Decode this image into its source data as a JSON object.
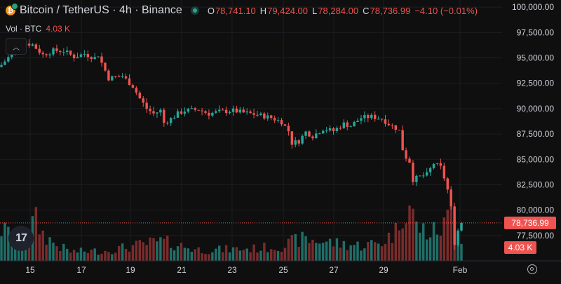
{
  "header": {
    "title": "Bitcoin / TetherUS · 4h · Binance",
    "ohlc": {
      "o_label": "O",
      "o_value": "78,741.10",
      "h_label": "H",
      "h_value": "79,424.00",
      "l_label": "L",
      "l_value": "78,284.00",
      "c_label": "C",
      "c_value": "78,736.99",
      "change": "−4.10 (−0.01%)"
    }
  },
  "volume_legend": {
    "label": "Vol · BTC",
    "value": "4.03 K"
  },
  "price_badge": "78,736.99",
  "volume_badge": "4.03 K",
  "logo_text": "17",
  "colors": {
    "background": "#0f0f0f",
    "up": "#26a69a",
    "down": "#ef5350",
    "up_volume": "#1f6f68",
    "down_volume": "#7a2c2c",
    "grid": "#1b1d22",
    "text": "#d1d4dc"
  },
  "icons": [
    "bitcoin-icon",
    "status-dot-icon",
    "collapse-chevron-icon",
    "tradingview-logo",
    "settings-icon"
  ],
  "chart_data": {
    "type": "candlestick",
    "interval": "4h",
    "y_ticks": [
      "100,000.00",
      "97,500.00",
      "95,000.00",
      "92,500.00",
      "90,000.00",
      "87,500.00",
      "85,000.00",
      "82,500.00",
      "80,000.00",
      "77,500.00"
    ],
    "y_tick_values": [
      100000,
      97500,
      95000,
      92500,
      90000,
      87500,
      85000,
      82500,
      80000,
      77500
    ],
    "x_ticks": [
      "15",
      "17",
      "19",
      "21",
      "23",
      "25",
      "27",
      "29",
      "Feb"
    ],
    "ylim": [
      75000,
      100700
    ],
    "last_price": 78736.99,
    "grid": true,
    "close_path": [
      [
        0,
        94300
      ],
      [
        3,
        95400
      ],
      [
        6,
        96500
      ],
      [
        9,
        96300
      ],
      [
        12,
        95300
      ],
      [
        15,
        95700
      ],
      [
        18,
        95700
      ],
      [
        21,
        95100
      ],
      [
        24,
        95400
      ],
      [
        27,
        95000
      ],
      [
        28,
        95300
      ],
      [
        29,
        94500
      ],
      [
        31,
        93000
      ],
      [
        35,
        93200
      ],
      [
        38,
        92200
      ],
      [
        40,
        91000
      ],
      [
        42,
        90000
      ],
      [
        44,
        89500
      ],
      [
        46,
        89800
      ],
      [
        47,
        88600
      ],
      [
        49,
        89000
      ],
      [
        51,
        89500
      ],
      [
        53,
        89800
      ],
      [
        57,
        89900
      ],
      [
        60,
        89500
      ],
      [
        63,
        89700
      ],
      [
        67,
        89800
      ],
      [
        70,
        89600
      ],
      [
        74,
        89400
      ],
      [
        78,
        89100
      ],
      [
        81,
        88700
      ],
      [
        83,
        87800
      ],
      [
        84,
        86600
      ],
      [
        86,
        86800
      ],
      [
        88,
        87700
      ],
      [
        90,
        87300
      ],
      [
        93,
        88000
      ],
      [
        96,
        87800
      ],
      [
        99,
        88500
      ],
      [
        101,
        88300
      ],
      [
        104,
        89100
      ],
      [
        107,
        89200
      ],
      [
        110,
        89000
      ],
      [
        112,
        88500
      ],
      [
        114,
        88100
      ],
      [
        115,
        87800
      ],
      [
        116,
        86000
      ],
      [
        117,
        85200
      ],
      [
        118,
        84800
      ],
      [
        119,
        83000
      ],
      [
        121,
        83300
      ],
      [
        123,
        83500
      ],
      [
        125,
        84600
      ],
      [
        127,
        84200
      ],
      [
        128,
        83200
      ],
      [
        129,
        82000
      ],
      [
        130,
        80200
      ],
      [
        131,
        76800
      ],
      [
        132,
        78000
      ],
      [
        133,
        78700
      ]
    ],
    "volume_ylim": [
      0,
      10000
    ],
    "volume_profile": [
      [
        0,
        4000
      ],
      [
        5,
        3000
      ],
      [
        10,
        5200
      ],
      [
        12,
        3500
      ],
      [
        16,
        2000
      ],
      [
        20,
        1200
      ],
      [
        30,
        1300
      ],
      [
        38,
        1900
      ],
      [
        46,
        2500
      ],
      [
        50,
        2200
      ],
      [
        56,
        1500
      ],
      [
        60,
        1400
      ],
      [
        66,
        1500
      ],
      [
        74,
        1600
      ],
      [
        82,
        2000
      ],
      [
        86,
        2800
      ],
      [
        92,
        2600
      ],
      [
        98,
        2200
      ],
      [
        104,
        2000
      ],
      [
        110,
        2400
      ],
      [
        114,
        3800
      ],
      [
        116,
        6800
      ],
      [
        118,
        7200
      ],
      [
        120,
        4500
      ],
      [
        124,
        3500
      ],
      [
        128,
        4500
      ],
      [
        131,
        7600
      ],
      [
        133,
        3000
      ]
    ],
    "n_bars": 134
  }
}
